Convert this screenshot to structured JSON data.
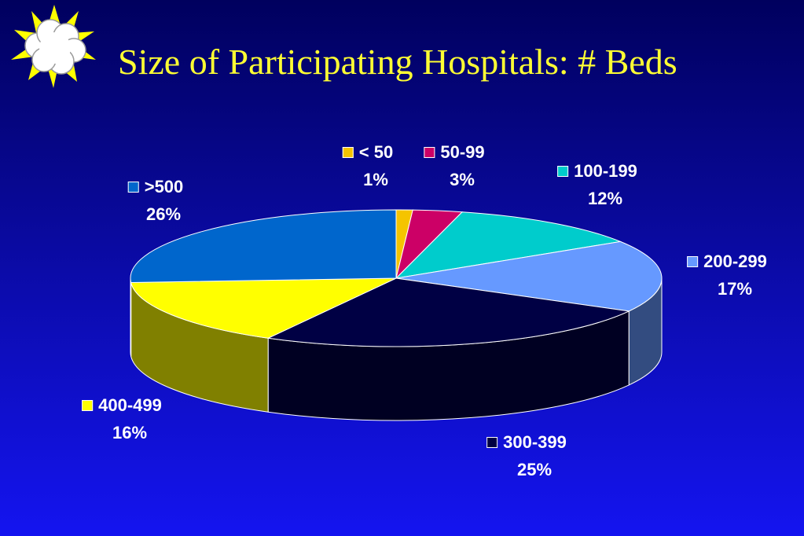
{
  "title": "Size of Participating Hospitals:  # Beds",
  "logo": {
    "icon": "starburst-cloud-icon",
    "colors": {
      "burst": "#ffff00",
      "cloud": "#ffffff"
    }
  },
  "chart_data": {
    "type": "pie",
    "three_d": true,
    "categories": [
      "< 50",
      "50-99",
      "100-199",
      "200-299",
      "300-399",
      "400-499",
      ">500"
    ],
    "values": [
      1,
      3,
      12,
      17,
      25,
      16,
      26
    ],
    "labels": [
      "1%",
      "3%",
      "12%",
      "17%",
      "25%",
      "16%",
      "26%"
    ],
    "colors": [
      "#f5c400",
      "#cc0066",
      "#00cccc",
      "#6699ff",
      "#000044",
      "#ffff00",
      "#0066cc"
    ],
    "side_colors": [
      "#8a7000",
      "#660033",
      "#006666",
      "#334c80",
      "#000022",
      "#808000",
      "#00335f"
    ],
    "legend": "labels-with-swatches",
    "title": "Size of Participating Hospitals:  # Beds"
  }
}
